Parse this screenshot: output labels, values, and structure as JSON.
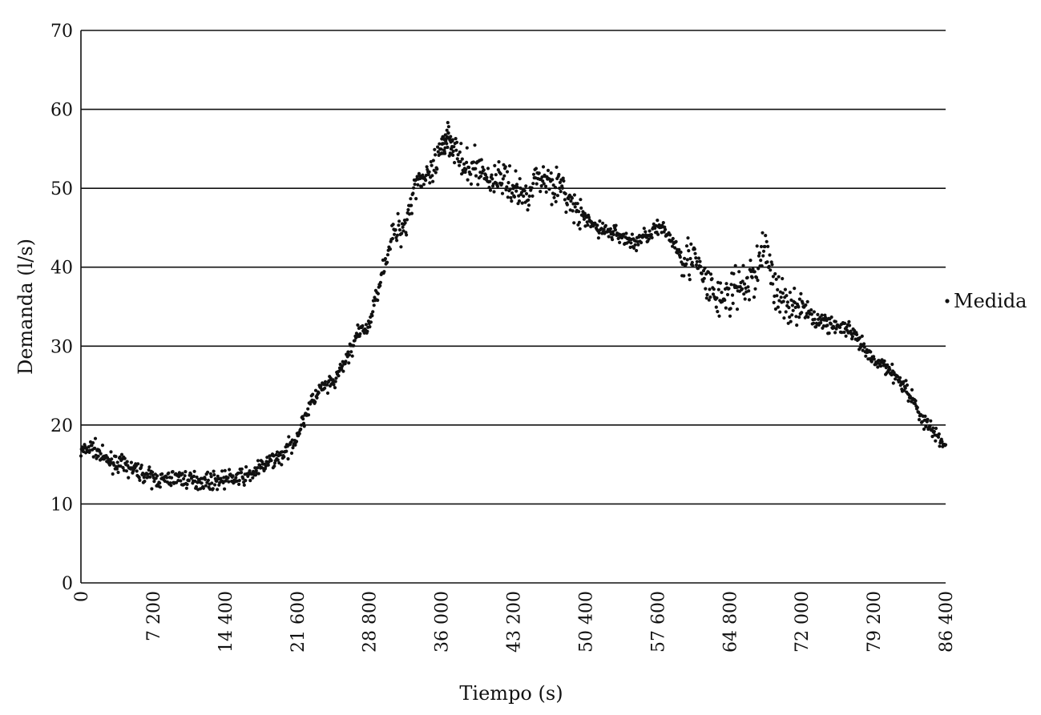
{
  "chart_data": {
    "type": "scatter",
    "xlabel": "Tiempo (s)",
    "ylabel": "Demanda (l/s)",
    "xlim": [
      0,
      86400
    ],
    "ylim": [
      0,
      70
    ],
    "x_ticks": [
      0,
      7200,
      14400,
      21600,
      28800,
      36000,
      43200,
      50400,
      57600,
      64800,
      72000,
      79200,
      86400
    ],
    "x_tick_labels": [
      "0",
      "7 200",
      "14 400",
      "21 600",
      "28 800",
      "36 000",
      "43 200",
      "50 400",
      "57 600",
      "64 800",
      "72 000",
      "79 200",
      "86 400"
    ],
    "y_ticks": [
      0,
      10,
      20,
      30,
      40,
      50,
      60,
      70
    ],
    "y_tick_labels": [
      "0",
      "10",
      "20",
      "30",
      "40",
      "50",
      "60",
      "70"
    ],
    "grid": "horizontal",
    "legend": {
      "placement": "right",
      "entries": [
        "Medida"
      ]
    },
    "marker_color": "#111111",
    "series": [
      {
        "name": "Medida",
        "points": [
          [
            0,
            16.6
          ],
          [
            1200,
            17.2
          ],
          [
            2400,
            15.6
          ],
          [
            3600,
            15.2
          ],
          [
            4800,
            14.6
          ],
          [
            6000,
            14.0
          ],
          [
            7200,
            13.2
          ],
          [
            8400,
            13.0
          ],
          [
            9600,
            13.4
          ],
          [
            10800,
            13.0
          ],
          [
            12000,
            13.0
          ],
          [
            13200,
            12.9
          ],
          [
            14400,
            13.2
          ],
          [
            15600,
            13.3
          ],
          [
            16800,
            13.6
          ],
          [
            18000,
            14.6
          ],
          [
            19200,
            15.6
          ],
          [
            20400,
            16.4
          ],
          [
            21600,
            18.6
          ],
          [
            22800,
            22.4
          ],
          [
            24000,
            24.6
          ],
          [
            25200,
            25.2
          ],
          [
            26400,
            28.0
          ],
          [
            27600,
            31.4
          ],
          [
            28800,
            32.6
          ],
          [
            30000,
            39.0
          ],
          [
            31200,
            44.0
          ],
          [
            32400,
            45.5
          ],
          [
            33600,
            51.5
          ],
          [
            34800,
            51.0
          ],
          [
            36000,
            54.5
          ],
          [
            36600,
            57.0
          ],
          [
            37200,
            55.5
          ],
          [
            38400,
            52.0
          ],
          [
            39600,
            53.0
          ],
          [
            40800,
            51.0
          ],
          [
            42000,
            51.5
          ],
          [
            43200,
            50.0
          ],
          [
            44400,
            49.0
          ],
          [
            45600,
            51.5
          ],
          [
            46800,
            51.0
          ],
          [
            48000,
            50.0
          ],
          [
            49200,
            47.5
          ],
          [
            50400,
            46.0
          ],
          [
            51600,
            45.0
          ],
          [
            52800,
            44.5
          ],
          [
            54000,
            44.0
          ],
          [
            55200,
            43.0
          ],
          [
            56400,
            44.0
          ],
          [
            57600,
            45.0
          ],
          [
            58800,
            44.0
          ],
          [
            60000,
            41.5
          ],
          [
            61200,
            41.0
          ],
          [
            62400,
            38.0
          ],
          [
            63600,
            36.0
          ],
          [
            64800,
            36.5
          ],
          [
            66000,
            37.5
          ],
          [
            67200,
            38.5
          ],
          [
            68400,
            43.0
          ],
          [
            69600,
            36.0
          ],
          [
            70800,
            35.5
          ],
          [
            72000,
            35.0
          ],
          [
            73200,
            33.5
          ],
          [
            74400,
            33.0
          ],
          [
            75600,
            32.5
          ],
          [
            76800,
            32.0
          ],
          [
            78000,
            30.0
          ],
          [
            79200,
            28.0
          ],
          [
            80400,
            27.5
          ],
          [
            81600,
            26.0
          ],
          [
            82800,
            24.0
          ],
          [
            84000,
            21.0
          ],
          [
            85200,
            19.0
          ],
          [
            86400,
            17.5
          ]
        ]
      }
    ]
  }
}
